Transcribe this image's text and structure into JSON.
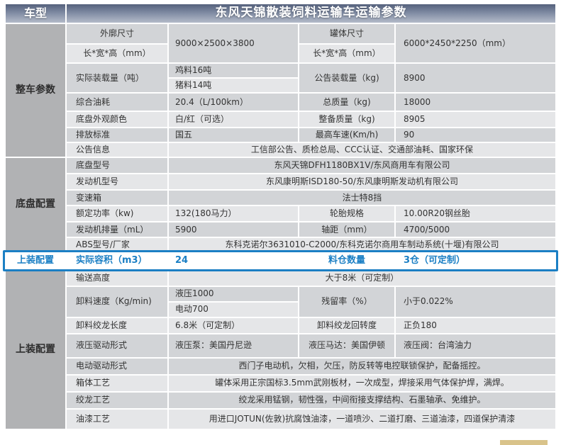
{
  "colors": {
    "accent_blue": "#1b7fc4",
    "header_gradient_top": "#55617c",
    "header_gradient_bottom": "#b4bbc9",
    "sidebar_gray": "#b1b2b4",
    "row_dark": "#d2d4d7",
    "row_light": "#e5e6e8"
  },
  "header": {
    "car_type": "车型",
    "title": "东风天锦散装饲料运输车运输参数"
  },
  "sections": {
    "vehicle": "整车参数",
    "chassis": "底盘配置",
    "upper": "上装配置"
  },
  "vehicle": {
    "outline": {
      "label": "外廓尺寸",
      "sublabel": "长*宽*高（mm）",
      "value": "9000×2500×3800",
      "tank_label": "罐体尺寸",
      "tank_sublabel": "长*宽*高（mm）",
      "tank_value": "6000*2450*2250（mm）"
    },
    "load": {
      "label": "实际装载量（吨）",
      "chicken": "鸡料16吨",
      "pig": "猪料14吨",
      "announced_label": "公告装载量（kg)",
      "announced_value": "8900"
    },
    "fuel": {
      "label": "综合油耗",
      "value": "20.4（L/100km）",
      "gross_label": "总质量（kg)",
      "gross_value": "18000"
    },
    "paint_color": {
      "label": "底盘外观颜色",
      "value": "白/红（可选）",
      "curb_label": "整备质量（kg)",
      "curb_value": "8905"
    },
    "emission": {
      "label": "排放标准",
      "value": "国五",
      "speed_label": "最高车速(Km/h)",
      "speed_value": "90"
    },
    "notice": {
      "label": "公告信息",
      "value": "工信部公告、质检总局、CCC认证、交通部油耗、国家环保"
    }
  },
  "chassis": {
    "chassis_model": {
      "label": "底盘型号",
      "value": "东风天锦DFH1180BX1V/东风商用车有限公司"
    },
    "engine_model": {
      "label": "发动机型号",
      "value": "东风康明斯ISD180-50/东风康明斯发动机有限公司"
    },
    "gearbox": {
      "label": "变速箱",
      "value": "法士特8挡"
    },
    "power": {
      "label": "额定功率（kw)",
      "value": "132(180马力）",
      "tire_label": "轮胎规格",
      "tire_value": "10.00R20钢丝胎"
    },
    "displacement": {
      "label": "发动机排量（mL）",
      "value": "5900",
      "wheelbase_label": "轴距（mm）",
      "wheelbase_value": "4700/5000"
    },
    "abs": {
      "label": "ABS型号/厂家",
      "value": "东科克诺尔3631010-C2000/东科克诺尔商用车制动系统(十堰)有限公司"
    }
  },
  "highlight": {
    "section": "上装配置",
    "volume_label": "实际容积（m3）",
    "volume_value": "24",
    "bins_label": "料仓数量",
    "bins_value": "3仓（可定制）"
  },
  "upper": {
    "conveying_height": {
      "label": "输送高度",
      "value": "大于8米（可定制）"
    },
    "discharge_speed": {
      "label": "卸料速度（Kg/min)",
      "hydraulic": "液压1000",
      "electric": "电动700",
      "residual_label": "残留率（%）",
      "residual_value": "小于0.022%"
    },
    "auger_length": {
      "label": "卸料绞龙长度",
      "value": "6.8米（可定制）",
      "rotation_label": "卸料绞龙回转度",
      "rotation_value": "正负180"
    },
    "hydraulic_drive": {
      "label": "液压驱动形式",
      "pump": "液压泵：美国丹尼逊",
      "motor": "液压马达：美国伊顿",
      "valve": "液压阀：台湾油力"
    },
    "electric_drive": {
      "label": "电动驱动形式",
      "value": "西门子电动机，欠相，欠压，防反转等电控联锁保护，配备摇控。"
    },
    "body_craft": {
      "label": "箱体工艺",
      "value": "罐体采用正宗国标3.5mm武刚板材，一次成型，焊接采用气体保护焊，满焊。"
    },
    "auger_craft": {
      "label": "绞龙工艺",
      "value": "绞龙采用锰钢，韧性强，中间衔接支撑结构、石墨轴承、免维护。"
    },
    "paint_craft": {
      "label": "油漆工艺",
      "value": "用进口JOTUN(佐敦)抗腐蚀油漆，一道喷沙、二道打磨、三道油漆，四道保护清漆"
    }
  }
}
